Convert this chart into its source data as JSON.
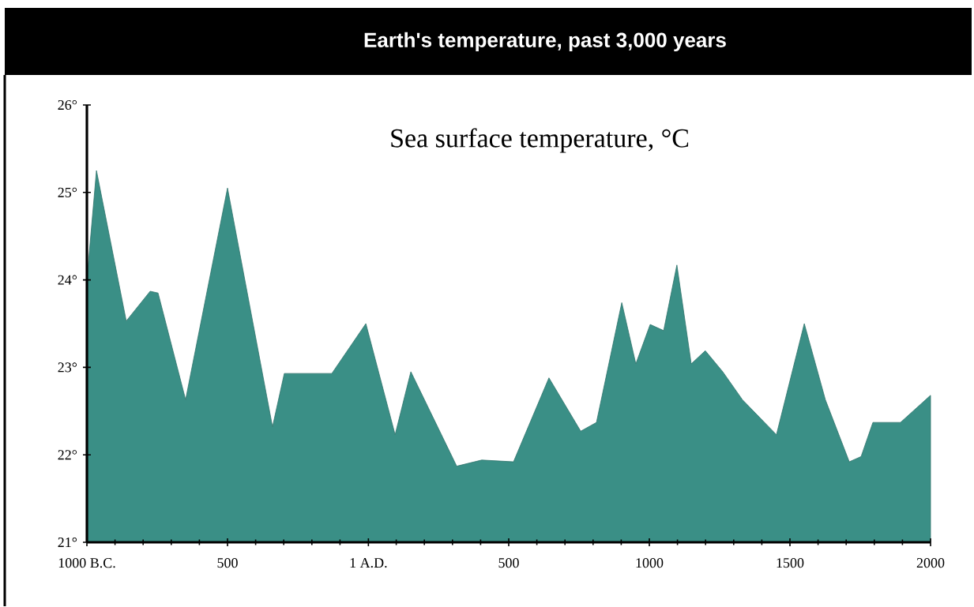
{
  "chart_data": {
    "type": "area",
    "title": "Earth's temperature, past 3,000 years",
    "subtitle": "Sea surface temperature, °C",
    "x": [
      -1000,
      -966,
      -860,
      -775,
      -747,
      -649,
      -500,
      -340,
      -298,
      -129,
      -8,
      96,
      152,
      315,
      404,
      517,
      643,
      756,
      812,
      902,
      952,
      1003,
      1051,
      1098,
      1149,
      1199,
      1261,
      1331,
      1452,
      1551,
      1626,
      1711,
      1753,
      1795,
      1893,
      2000
    ],
    "values": [
      24.0,
      25.25,
      23.53,
      23.87,
      23.85,
      22.63,
      25.05,
      22.32,
      22.93,
      22.93,
      23.5,
      22.23,
      22.95,
      21.87,
      21.94,
      21.92,
      22.88,
      22.27,
      22.37,
      23.74,
      23.04,
      23.49,
      23.42,
      24.17,
      23.04,
      23.19,
      22.95,
      22.63,
      22.23,
      23.5,
      22.63,
      21.92,
      21.98,
      22.37,
      22.37,
      22.68
    ],
    "color": "#3a8f86",
    "xlim": [
      -1000,
      2000
    ],
    "xticks": [
      {
        "value": -1000,
        "label": "1000 B.C."
      },
      {
        "value": -900,
        "label": null
      },
      {
        "value": -800,
        "label": null
      },
      {
        "value": -700,
        "label": null
      },
      {
        "value": -600,
        "label": null
      },
      {
        "value": -500,
        "label": "500"
      },
      {
        "value": -400,
        "label": null
      },
      {
        "value": -300,
        "label": null
      },
      {
        "value": -200,
        "label": null
      },
      {
        "value": -100,
        "label": null
      },
      {
        "value": 1,
        "label": "1 A.D."
      },
      {
        "value": 100,
        "label": null
      },
      {
        "value": 200,
        "label": null
      },
      {
        "value": 300,
        "label": null
      },
      {
        "value": 400,
        "label": null
      },
      {
        "value": 500,
        "label": "500"
      },
      {
        "value": 600,
        "label": null
      },
      {
        "value": 700,
        "label": null
      },
      {
        "value": 800,
        "label": null
      },
      {
        "value": 900,
        "label": null
      },
      {
        "value": 1000,
        "label": "1000"
      },
      {
        "value": 1100,
        "label": null
      },
      {
        "value": 1200,
        "label": null
      },
      {
        "value": 1300,
        "label": null
      },
      {
        "value": 1400,
        "label": null
      },
      {
        "value": 1500,
        "label": "1500"
      },
      {
        "value": 1600,
        "label": null
      },
      {
        "value": 1700,
        "label": null
      },
      {
        "value": 1800,
        "label": null
      },
      {
        "value": 1900,
        "label": null
      },
      {
        "value": 2000,
        "label": "2000"
      }
    ],
    "ylim": [
      21,
      26
    ],
    "yticks": [
      {
        "value": 21,
        "label": "21°"
      },
      {
        "value": 22,
        "label": "22°"
      },
      {
        "value": 23,
        "label": "23°"
      },
      {
        "value": 24,
        "label": "24°"
      },
      {
        "value": 25,
        "label": "25°"
      },
      {
        "value": 26,
        "label": "26°"
      }
    ]
  }
}
